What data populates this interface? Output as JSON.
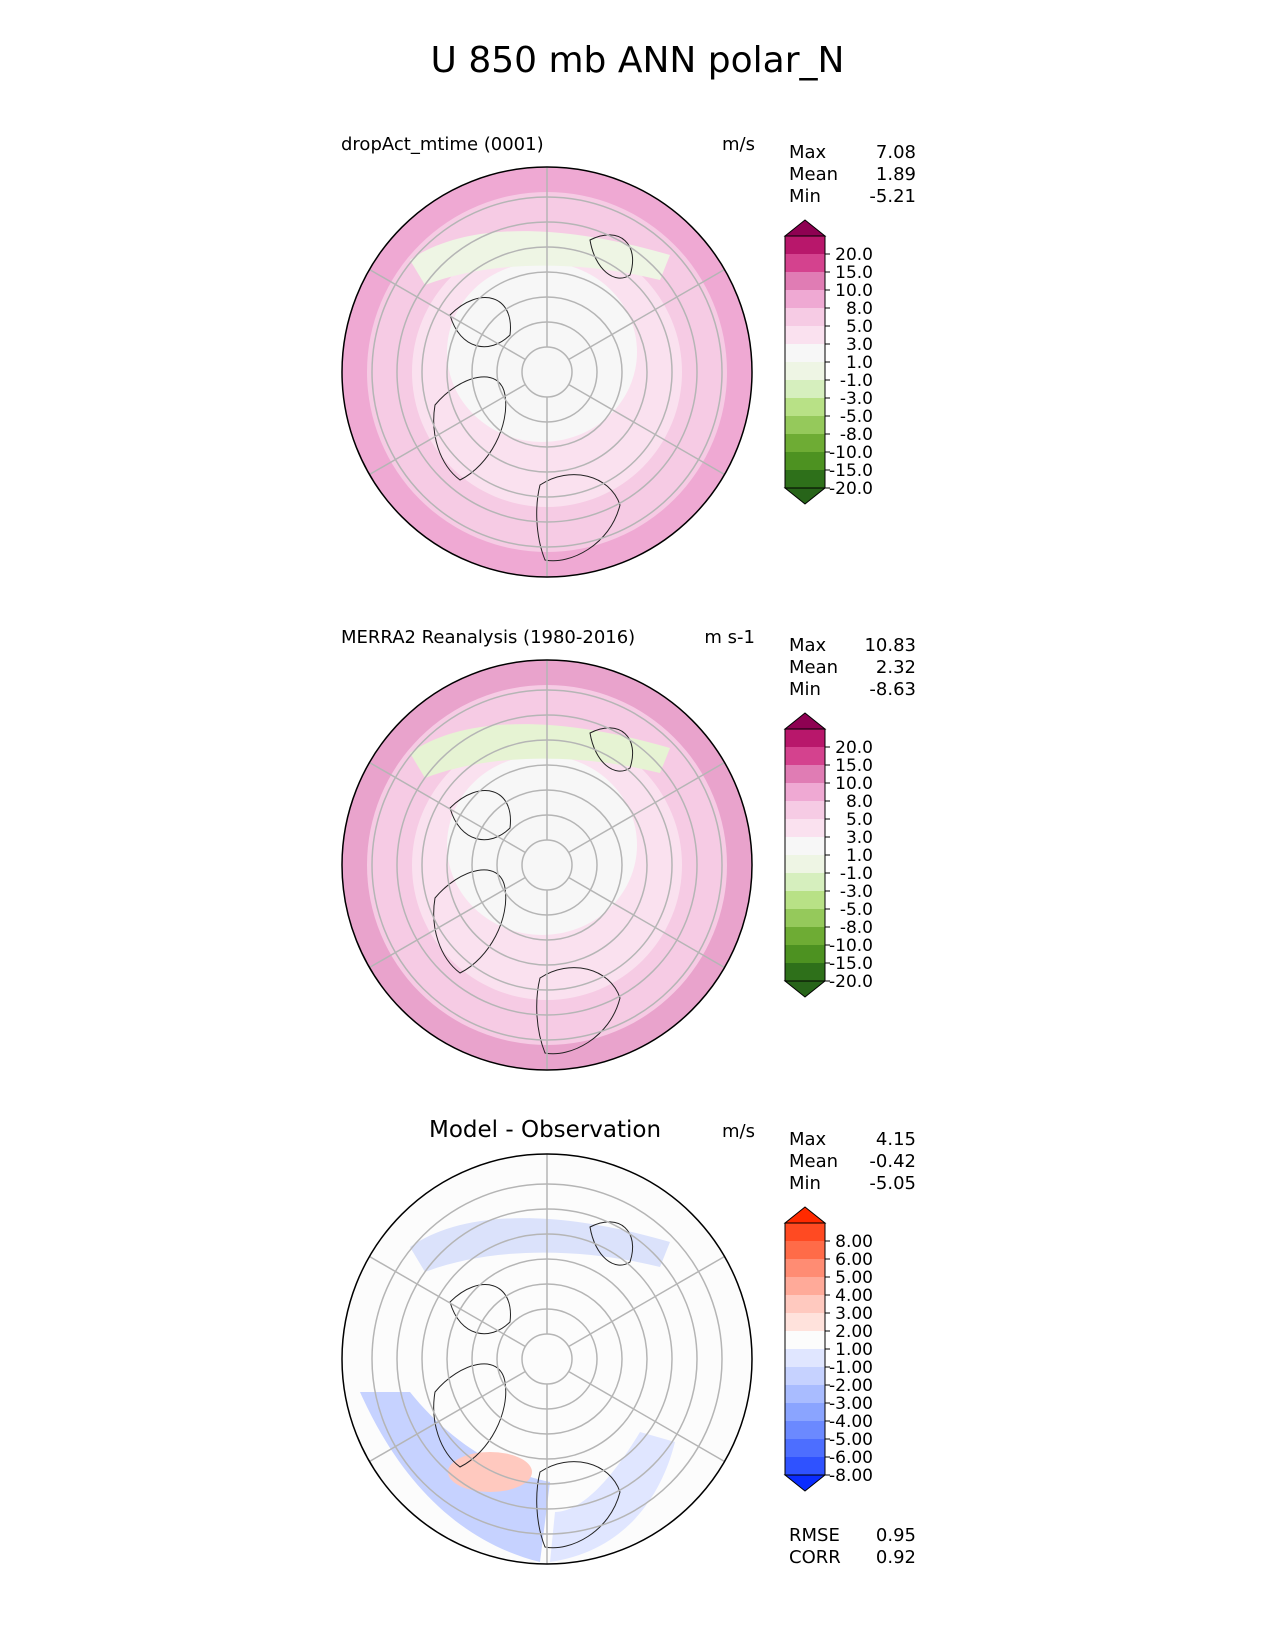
{
  "title": "U 850 mb ANN polar_N",
  "panels": [
    {
      "title": "dropAct_mtime (0001)",
      "units": "m/s",
      "stats": {
        "max": "7.08",
        "mean": "1.89",
        "min": "-5.21"
      },
      "colorbar": {
        "ticks": [
          "20.0",
          "15.0",
          "10.0",
          "8.0",
          "5.0",
          "3.0",
          "1.0",
          "-1.0",
          "-3.0",
          "-5.0",
          "-8.0",
          "-10.0",
          "-15.0",
          "-20.0"
        ],
        "colors": [
          "#8e0152",
          "#b8176b",
          "#d4428e",
          "#e07cb4",
          "#efa9d3",
          "#f6cbe4",
          "#fae1ef",
          "#f7f7f7",
          "#eef5e4",
          "#d6efbe",
          "#b8e186",
          "#95c95b",
          "#6eac34",
          "#4d9221",
          "#2e701a",
          "#276419"
        ]
      },
      "fill_colors": {
        "high": "#efa9d3",
        "mid": "#f6cbe4",
        "low": "#fae1ef",
        "neutral": "#f7f7f7",
        "negative": "#eef5e4"
      }
    },
    {
      "title": "MERRA2 Reanalysis (1980-2016)",
      "units": "m s-1",
      "stats": {
        "max": "10.83",
        "mean": "2.32",
        "min": "-8.63"
      },
      "colorbar": {
        "ticks": [
          "20.0",
          "15.0",
          "10.0",
          "8.0",
          "5.0",
          "3.0",
          "1.0",
          "-1.0",
          "-3.0",
          "-5.0",
          "-8.0",
          "-10.0",
          "-15.0",
          "-20.0"
        ],
        "colors": [
          "#8e0152",
          "#b8176b",
          "#d4428e",
          "#e07cb4",
          "#efa9d3",
          "#f6cbe4",
          "#fae1ef",
          "#f7f7f7",
          "#eef5e4",
          "#d6efbe",
          "#b8e186",
          "#95c95b",
          "#6eac34",
          "#4d9221",
          "#2e701a",
          "#276419"
        ]
      },
      "fill_colors": {
        "high": "#e9a3cc",
        "mid": "#f6cbe4",
        "low": "#fae1ef",
        "neutral": "#f7f7f7",
        "negative": "#e6f3d3"
      }
    },
    {
      "title": "Model - Observation",
      "units": "m/s",
      "stats": {
        "max": "4.15",
        "mean": "-0.42",
        "min": "-5.05"
      },
      "colorbar": {
        "ticks": [
          "8.00",
          "6.00",
          "5.00",
          "4.00",
          "3.00",
          "2.00",
          "1.00",
          "-1.00",
          "-2.00",
          "-3.00",
          "-4.00",
          "-5.00",
          "-6.00",
          "-8.00"
        ],
        "colors": [
          "#ff2a00",
          "#ff4a22",
          "#ff6b48",
          "#ff8c73",
          "#ffaa99",
          "#ffc9bf",
          "#ffe2dc",
          "#fcfcfc",
          "#e0e6ff",
          "#c6d2ff",
          "#a9bcff",
          "#8aa4ff",
          "#6b89ff",
          "#4d6eff",
          "#2f52ff",
          "#0a2cff"
        ]
      },
      "fill_colors": {
        "high": "#fcfcfc",
        "mid": "#fcfcfc",
        "low": "#fcfcfc",
        "neutral": "#fcfcfc",
        "negative": "#dbe2fb"
      }
    }
  ],
  "metrics": {
    "rmse_label": "RMSE",
    "rmse": "0.95",
    "corr_label": "CORR",
    "corr": "0.92"
  },
  "stat_labels": {
    "max": "Max",
    "mean": "Mean",
    "min": "Min"
  }
}
